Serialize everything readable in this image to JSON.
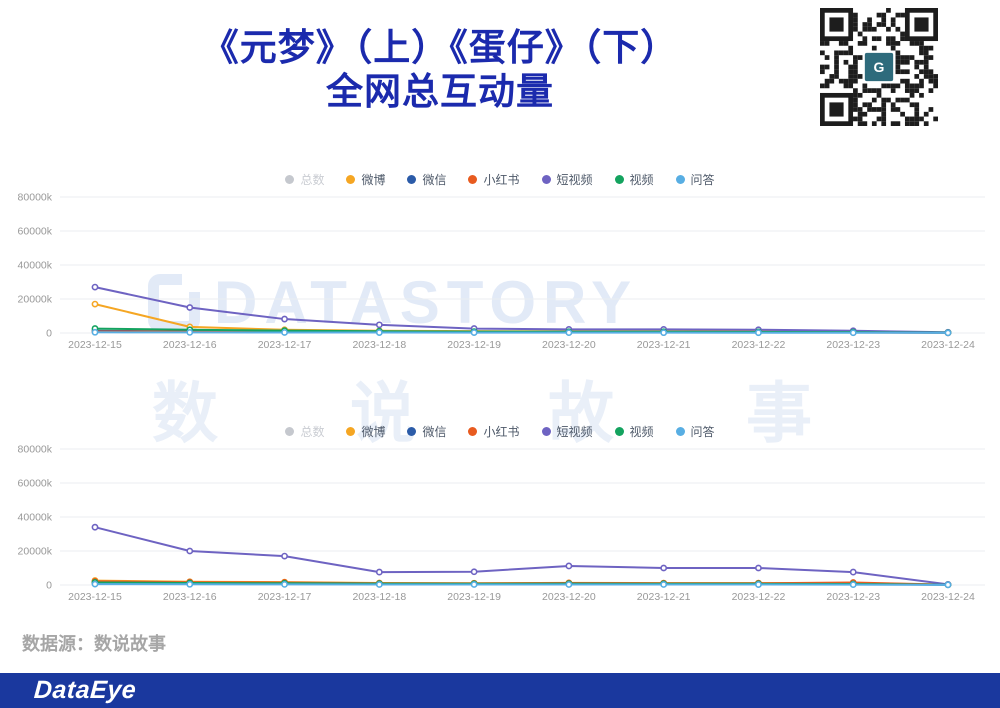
{
  "title": {
    "line1": "《元梦》（上）《蛋仔》（下）",
    "line2": "全网总互动量",
    "color": "#1b2aad"
  },
  "watermark": {
    "brand_text": "DATASTORY",
    "cn_text": "数说故事"
  },
  "source_line": "数据源：数说故事",
  "footer": {
    "logo_text": "DataEye",
    "bar_color": "#1a389e"
  },
  "qr": {
    "center_logo_text": "G",
    "center_logo_color": "#2e6b7c",
    "module_color": "#1d1d1d"
  },
  "axis": {
    "tick_labels": [
      "0",
      "20000k",
      "40000k",
      "60000k",
      "80000k"
    ],
    "tick_values": [
      0,
      20000,
      40000,
      60000,
      80000
    ],
    "label_color": "#999999",
    "grid_color": "#ebedf0"
  },
  "chart_data": [
    {
      "type": "line",
      "game": "《元梦》",
      "position_label": "上",
      "ylim": [
        0,
        80000
      ],
      "grid": true,
      "legend_position": "top",
      "categories": [
        "2023-12-15",
        "2023-12-16",
        "2023-12-17",
        "2023-12-18",
        "2023-12-19",
        "2023-12-20",
        "2023-12-21",
        "2023-12-22",
        "2023-12-23",
        "2023-12-24"
      ],
      "series": [
        {
          "name": "总数",
          "color": "#c5c8ce",
          "disabled": true,
          "values": []
        },
        {
          "name": "微博",
          "color": "#f5a623",
          "disabled": false,
          "values": [
            17000,
            3600,
            1900,
            1300,
            1100,
            1000,
            1000,
            900,
            700,
            250
          ]
        },
        {
          "name": "微信",
          "color": "#2b5ba8",
          "disabled": false,
          "values": [
            1300,
            950,
            800,
            700,
            620,
            600,
            550,
            500,
            420,
            150
          ]
        },
        {
          "name": "小红书",
          "color": "#e85b1f",
          "disabled": false,
          "values": [
            900,
            750,
            620,
            520,
            460,
            420,
            400,
            360,
            300,
            120
          ]
        },
        {
          "name": "短视频",
          "color": "#6e63c2",
          "disabled": false,
          "values": [
            27000,
            15000,
            8200,
            4800,
            2600,
            2100,
            2100,
            1900,
            1300,
            420
          ]
        },
        {
          "name": "视频",
          "color": "#14a35f",
          "disabled": false,
          "values": [
            2600,
            1900,
            1400,
            1000,
            820,
            720,
            700,
            620,
            500,
            200
          ]
        },
        {
          "name": "问答",
          "color": "#58aee3",
          "disabled": false,
          "values": [
            420,
            360,
            310,
            270,
            250,
            220,
            200,
            180,
            150,
            80
          ]
        }
      ]
    },
    {
      "type": "line",
      "game": "《蛋仔》",
      "position_label": "下",
      "ylim": [
        0,
        80000
      ],
      "grid": true,
      "legend_position": "top",
      "categories": [
        "2023-12-15",
        "2023-12-16",
        "2023-12-17",
        "2023-12-18",
        "2023-12-19",
        "2023-12-20",
        "2023-12-21",
        "2023-12-22",
        "2023-12-23",
        "2023-12-24"
      ],
      "series": [
        {
          "name": "总数",
          "color": "#c5c8ce",
          "disabled": true,
          "values": []
        },
        {
          "name": "微博",
          "color": "#f5a623",
          "disabled": false,
          "values": [
            2600,
            1900,
            1700,
            1150,
            1050,
            1250,
            1100,
            1100,
            1000,
            260
          ]
        },
        {
          "name": "微信",
          "color": "#2b5ba8",
          "disabled": false,
          "values": [
            1050,
            850,
            750,
            620,
            580,
            620,
            560,
            520,
            460,
            160
          ]
        },
        {
          "name": "小红书",
          "color": "#e85b1f",
          "disabled": false,
          "values": [
            2150,
            1650,
            1500,
            1000,
            950,
            1150,
            1050,
            1050,
            1450,
            220
          ]
        },
        {
          "name": "短视频",
          "color": "#6e63c2",
          "disabled": false,
          "values": [
            34000,
            20000,
            17000,
            7600,
            7800,
            11200,
            10000,
            10000,
            7600,
            350
          ]
        },
        {
          "name": "视频",
          "color": "#14a35f",
          "disabled": false,
          "values": [
            1500,
            1150,
            1000,
            820,
            720,
            800,
            720,
            700,
            600,
            160
          ]
        },
        {
          "name": "问答",
          "color": "#58aee3",
          "disabled": false,
          "values": [
            520,
            420,
            360,
            300,
            280,
            300,
            280,
            260,
            220,
            110
          ]
        }
      ]
    }
  ]
}
